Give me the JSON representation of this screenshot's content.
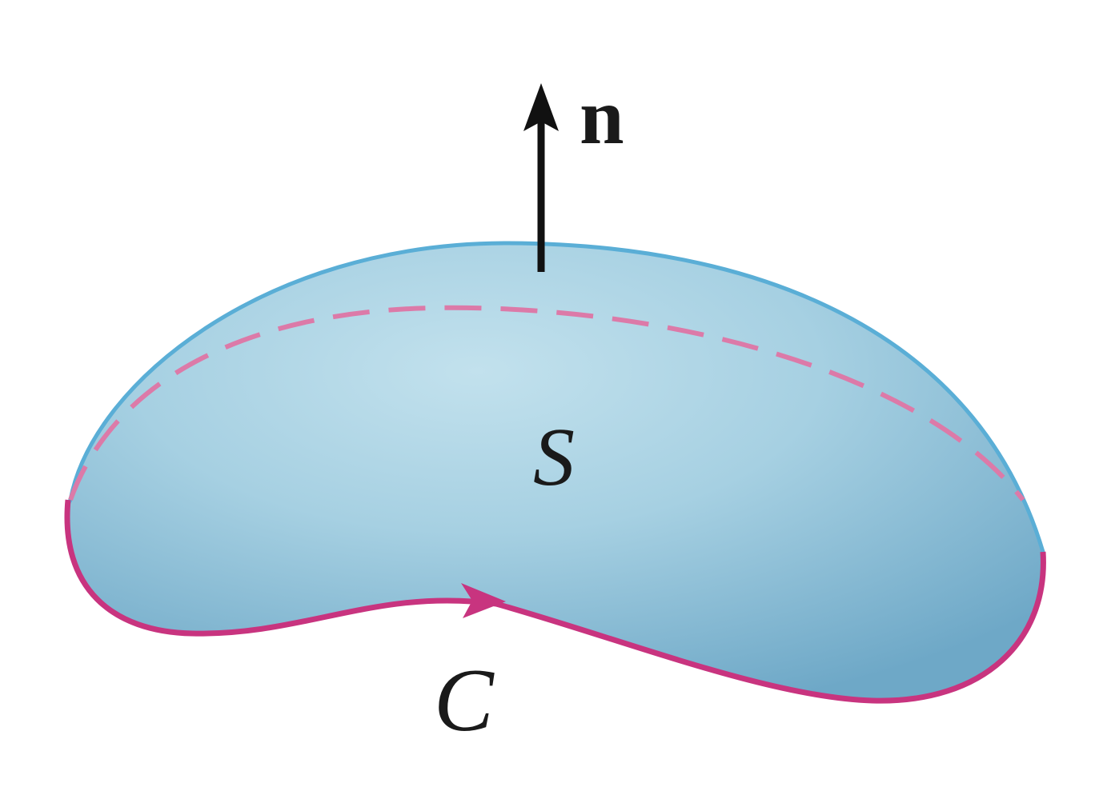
{
  "labels": {
    "normal_vector": "n",
    "surface": "S",
    "curve": "C"
  },
  "colors": {
    "surface_fill_center": "#c0e0ec",
    "surface_fill_edge": "#6fa9c8",
    "surface_outline": "#5aaed6",
    "boundary_curve": "#c8347f",
    "hidden_boundary_dashed": "#dc7aa8",
    "arrow": "#111111",
    "text": "#1a1a1a"
  }
}
